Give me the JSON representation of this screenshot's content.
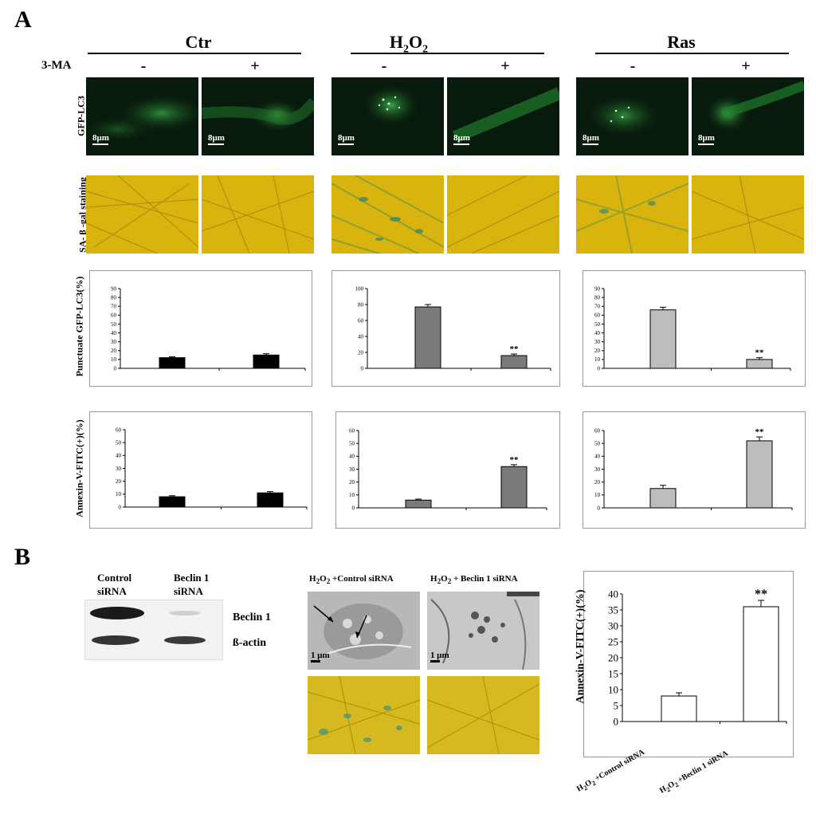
{
  "panel_a": {
    "label": "A",
    "conditions": [
      {
        "title": "Ctr",
        "title_suffix": ""
      },
      {
        "title": "H",
        "title_sub": "2",
        "title_mid": "O",
        "title_sub2": "2"
      },
      {
        "title": "Ras",
        "title_suffix": ""
      }
    ],
    "treatment_label": "3-MA",
    "signs": [
      "-",
      "+",
      "-",
      "+",
      "-",
      "+"
    ],
    "row_labels": {
      "gfp": "GFP-LC3",
      "sa": "SA- β -gal staining",
      "punctate": "Punctuate GFP-LC3(%)",
      "annexin": "Annexin-V-FITC(+)(%)"
    },
    "scale_label": "8μm",
    "significance": "**"
  },
  "panel_b": {
    "label": "B",
    "blot": {
      "col_labels": [
        "Control\nsiRNA",
        "Beclin 1\nsiRNA"
      ],
      "col_label_lines": [
        [
          "Control",
          "siRNA"
        ],
        [
          "Beclin 1",
          "siRNA"
        ]
      ],
      "row_labels": [
        "Beclin 1",
        "ß-actin"
      ]
    },
    "em_titles": [
      "H2O2 +Control siRNA",
      "H2O2 + Beclin 1 siRNA"
    ],
    "em_title_parts": [
      {
        "pre": "H",
        "s1": "2",
        "mid": "O",
        "s2": "2",
        "post": " +Control siRNA"
      },
      {
        "pre": "H",
        "s1": "2",
        "mid": "O",
        "s2": "2",
        "post": " + Beclin 1 siRNA"
      }
    ],
    "em_scale_label": "1 μm"
  },
  "chart_data": [
    {
      "type": "bar",
      "id": "A-punctate-ctr",
      "categories": [
        "-",
        "+"
      ],
      "values": [
        12,
        15
      ],
      "errors": [
        1,
        1.5
      ],
      "ylim": [
        0,
        90
      ],
      "yticks": [
        0,
        10,
        20,
        30,
        40,
        50,
        60,
        70,
        80,
        90
      ],
      "color": "#000000",
      "significance": [
        "",
        ""
      ]
    },
    {
      "type": "bar",
      "id": "A-punctate-h2o2",
      "categories": [
        "-",
        "+"
      ],
      "values": [
        77,
        16
      ],
      "errors": [
        3,
        2
      ],
      "ylim": [
        0,
        100
      ],
      "yticks": [
        0,
        20,
        40,
        60,
        80,
        100
      ],
      "color": "#7a7a7a",
      "significance": [
        "",
        "**"
      ]
    },
    {
      "type": "bar",
      "id": "A-punctate-ras",
      "categories": [
        "-",
        "+"
      ],
      "values": [
        66,
        10
      ],
      "errors": [
        3,
        2
      ],
      "ylim": [
        0,
        90
      ],
      "yticks": [
        0,
        10,
        20,
        30,
        40,
        50,
        60,
        70,
        80,
        90
      ],
      "color": "#bdbdbd",
      "significance": [
        "",
        "**"
      ]
    },
    {
      "type": "bar",
      "id": "A-annexin-ctr",
      "categories": [
        "-",
        "+"
      ],
      "values": [
        8,
        11
      ],
      "errors": [
        0.8,
        1
      ],
      "ylim": [
        0,
        60
      ],
      "yticks": [
        0,
        10,
        20,
        30,
        40,
        50,
        60
      ],
      "color": "#000000",
      "significance": [
        "",
        ""
      ]
    },
    {
      "type": "bar",
      "id": "A-annexin-h2o2",
      "categories": [
        "-",
        "+"
      ],
      "values": [
        6,
        32
      ],
      "errors": [
        0.8,
        1.5
      ],
      "ylim": [
        0,
        60
      ],
      "yticks": [
        0,
        10,
        20,
        30,
        40,
        50,
        60
      ],
      "color": "#7a7a7a",
      "significance": [
        "",
        "**"
      ]
    },
    {
      "type": "bar",
      "id": "A-annexin-ras",
      "categories": [
        "-",
        "+"
      ],
      "values": [
        15,
        52
      ],
      "errors": [
        2.5,
        3
      ],
      "ylim": [
        0,
        60
      ],
      "yticks": [
        0,
        10,
        20,
        30,
        40,
        50,
        60
      ],
      "color": "#bdbdbd",
      "significance": [
        "",
        "**"
      ]
    },
    {
      "type": "bar",
      "id": "B-annexin",
      "categories": [
        "H2O2 +Control siRNA",
        "H2O2 +Beclin 1 siRNA"
      ],
      "values": [
        8,
        36
      ],
      "errors": [
        1,
        2
      ],
      "ylim": [
        0,
        40
      ],
      "yticks": [
        0,
        5,
        10,
        15,
        20,
        25,
        30,
        35,
        40
      ],
      "color": "#ffffff",
      "ylabel": "Annexin-V-FITC(+)(%)",
      "significance": [
        "",
        "**"
      ]
    }
  ]
}
